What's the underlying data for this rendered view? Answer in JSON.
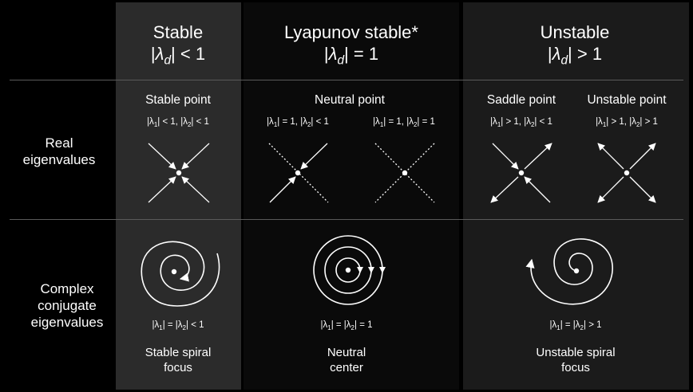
{
  "columns": {
    "stable": {
      "title": "Stable",
      "sym": "λ",
      "sub": "d",
      "cmp": "< 1"
    },
    "lyapunov": {
      "title": "Lyapunov stable*",
      "sym": "λ",
      "sub": "d",
      "cmp": "= 1"
    },
    "unstable": {
      "title": "Unstable",
      "sym": "λ",
      "sub": "d",
      "cmp": "> 1"
    }
  },
  "rows": {
    "real": {
      "line1": "Real",
      "line2": "eigenvalues"
    },
    "complex": {
      "line1": "Complex",
      "line2": "conjugate",
      "line3": "eigenvalues"
    }
  },
  "real_row": {
    "stable_point": "Stable point",
    "neutral_point": "Neutral point",
    "saddle_point": "Saddle point",
    "unstable_point": "Unstable point",
    "cond_stable": {
      "a": "1",
      "ra": "< 1,",
      "b": "2",
      "rb": "< 1"
    },
    "cond_neutral_a": {
      "a": "1",
      "ra": "= 1,",
      "b": "2",
      "rb": "< 1"
    },
    "cond_neutral_b": {
      "a": "1",
      "ra": "= 1,",
      "b": "2",
      "rb": "= 1"
    },
    "cond_saddle": {
      "a": "1",
      "ra": "> 1,",
      "b": "2",
      "rb": "< 1"
    },
    "cond_unstable": {
      "a": "1",
      "ra": "> 1,",
      "b": "2",
      "rb": "> 1"
    }
  },
  "complex_row": {
    "cond_stable": {
      "a": "1",
      "eq": "=",
      "b": "2",
      "rb": "< 1"
    },
    "cond_neutral": {
      "a": "1",
      "eq": "=",
      "b": "2",
      "rb": "= 1"
    },
    "cond_unstable": {
      "a": "1",
      "eq": "=",
      "b": "2",
      "rb": "> 1"
    },
    "stable_label_1": "Stable spiral",
    "stable_label_2": "focus",
    "neutral_label_1": "Neutral",
    "neutral_label_2": "center",
    "unstable_label_1": "Unstable spiral",
    "unstable_label_2": "focus"
  }
}
